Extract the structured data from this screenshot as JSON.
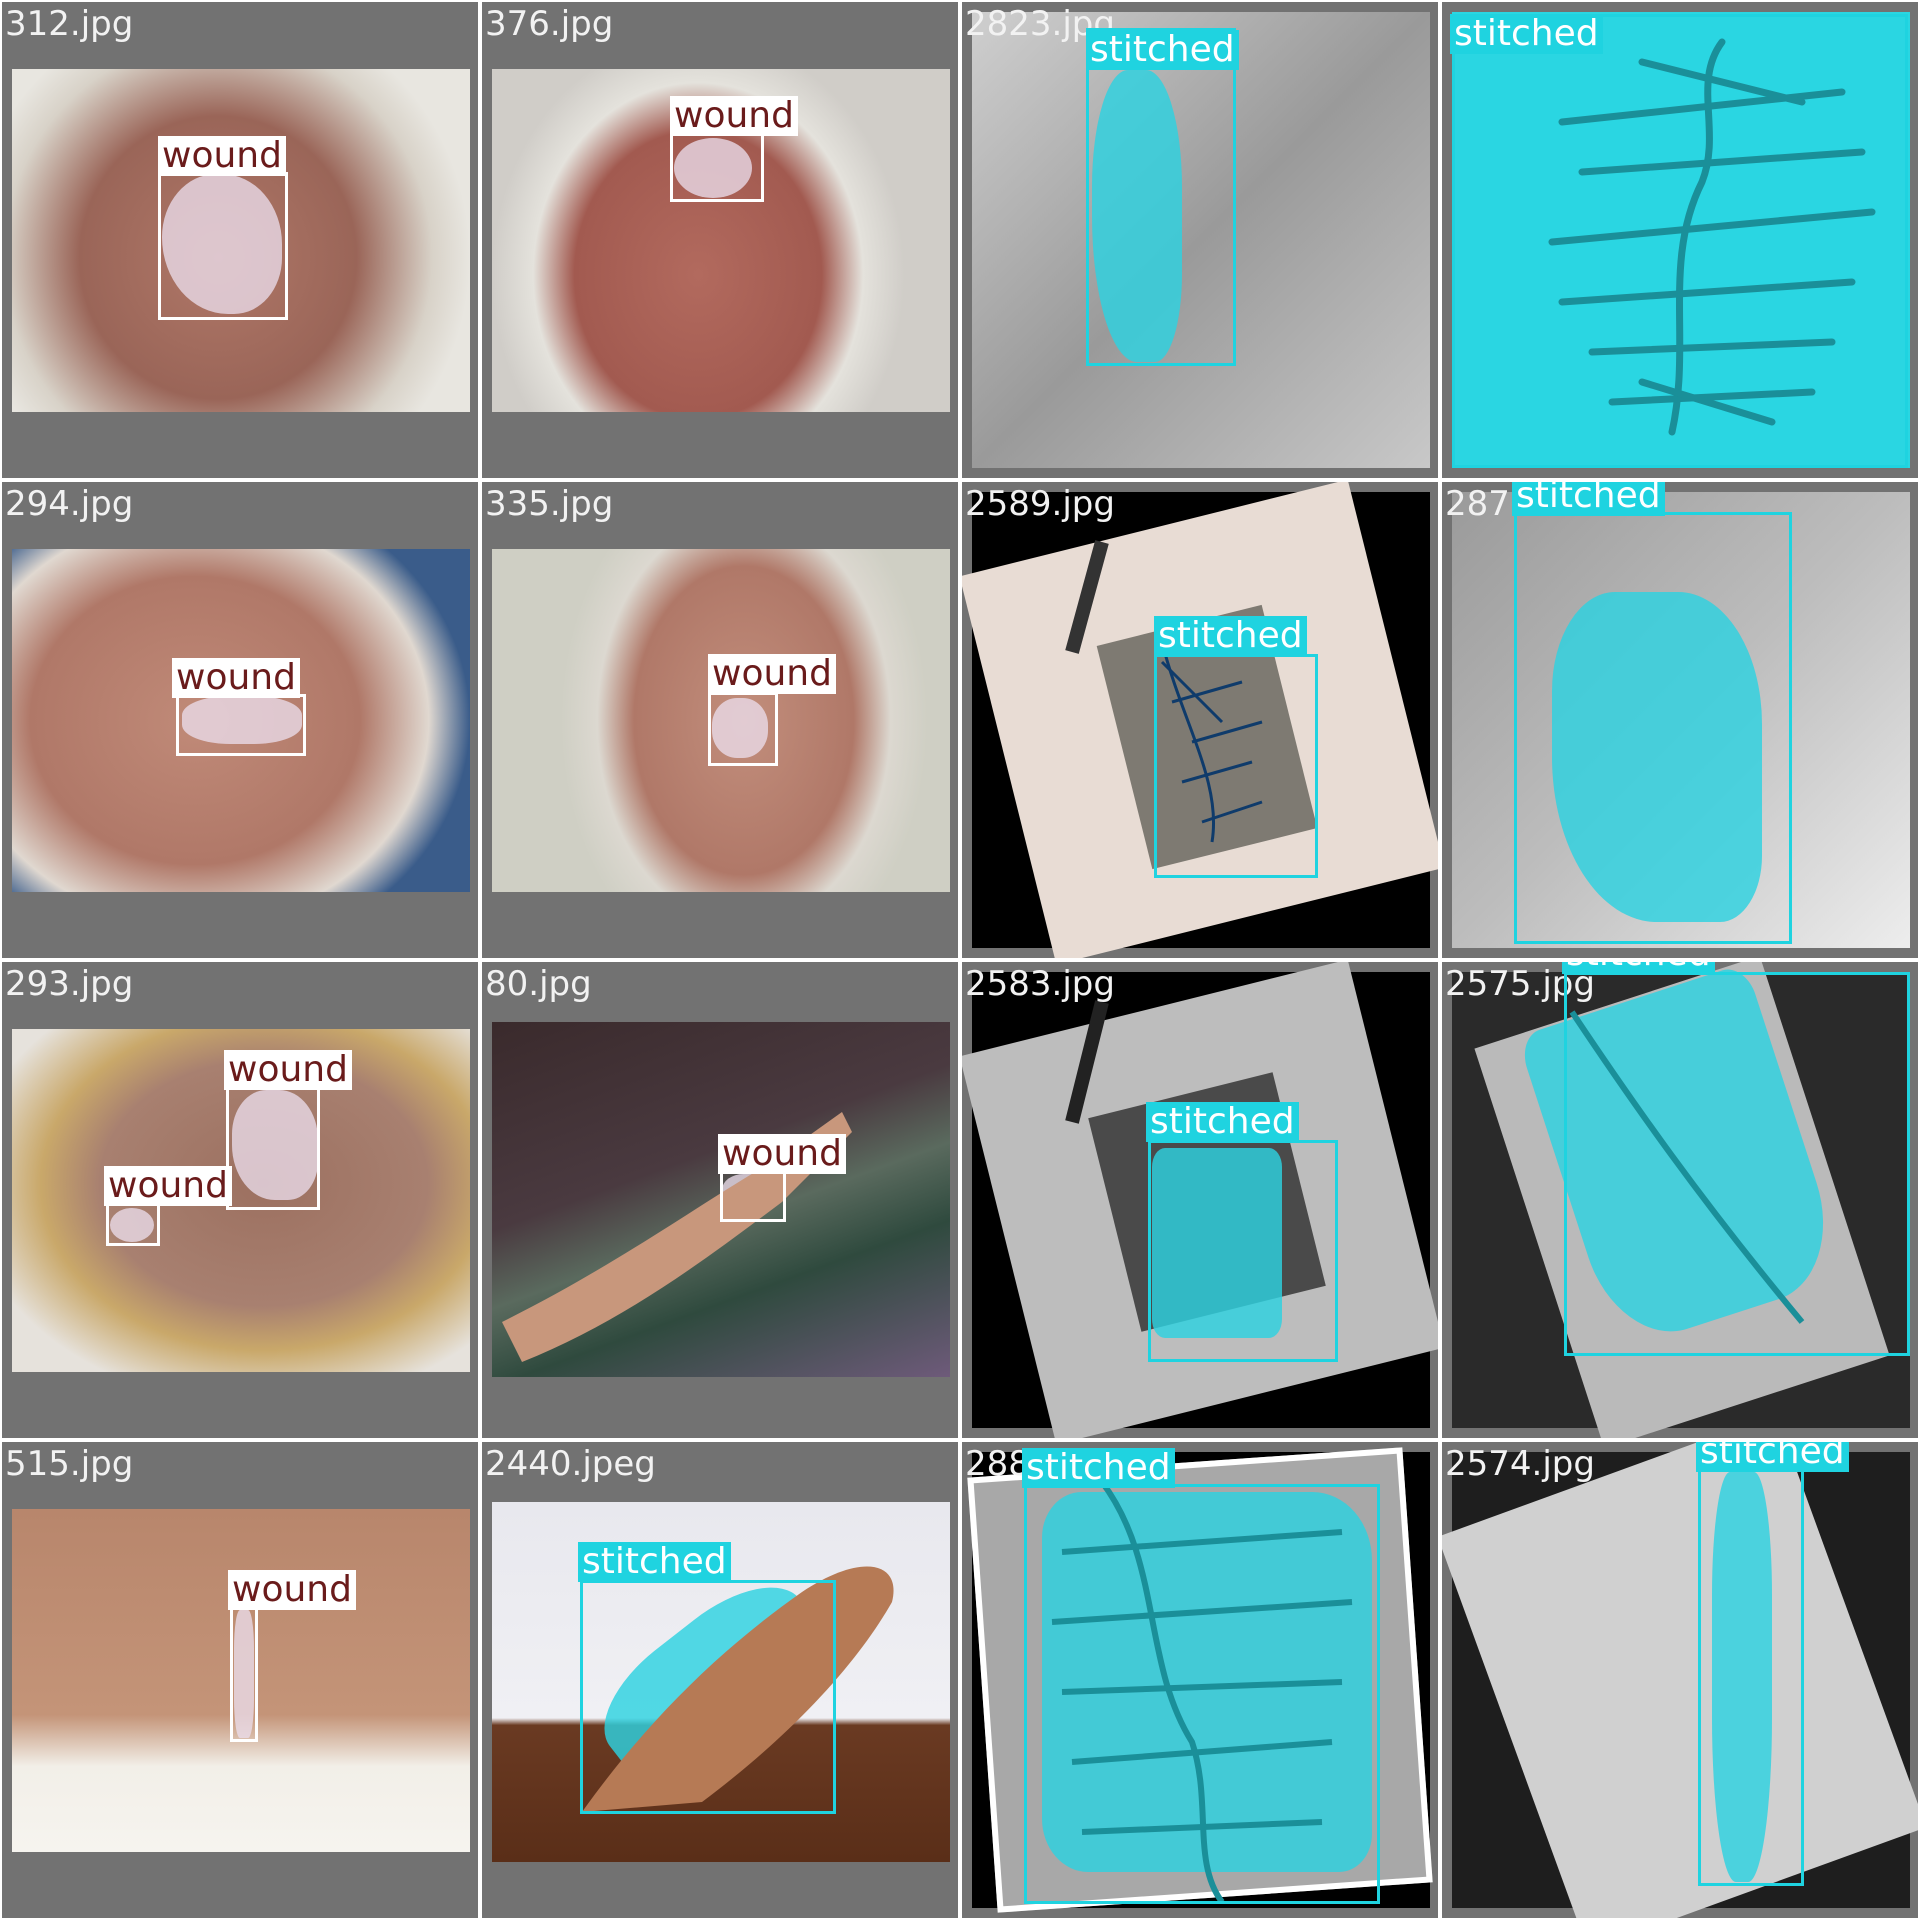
{
  "grid": {
    "columns": 4,
    "rows": 4,
    "colors": {
      "wound_box": "#ffffff",
      "wound_label_text": "#6a1b1b",
      "stitched_box": "#1fd3e0",
      "stitched_label_bg": "#1fd3e0",
      "cell_background": "#727272"
    },
    "tiles": [
      {
        "filename": "312.jpg",
        "detections": [
          {
            "label": "wound"
          }
        ]
      },
      {
        "filename": "376.jpg",
        "detections": [
          {
            "label": "wound"
          }
        ]
      },
      {
        "filename": "2823.jpg",
        "detections": [
          {
            "label": "stitched"
          }
        ]
      },
      {
        "filename": "",
        "detections": [
          {
            "label": "stitched"
          }
        ]
      },
      {
        "filename": "294.jpg",
        "detections": [
          {
            "label": "wound"
          }
        ]
      },
      {
        "filename": "335.jpg",
        "detections": [
          {
            "label": "wound"
          }
        ]
      },
      {
        "filename": "2589.jpg",
        "detections": [
          {
            "label": "stitched"
          }
        ]
      },
      {
        "filename": "287",
        "detections": [
          {
            "label": "stitched"
          }
        ]
      },
      {
        "filename": "293.jpg",
        "detections": [
          {
            "label": "wound"
          },
          {
            "label": "wound"
          }
        ]
      },
      {
        "filename": "80.jpg",
        "detections": [
          {
            "label": "wound"
          }
        ]
      },
      {
        "filename": "2583.jpg",
        "detections": [
          {
            "label": "stitched"
          }
        ]
      },
      {
        "filename": "2575.jpg",
        "detections": [
          {
            "label": "stitched"
          }
        ]
      },
      {
        "filename": "515.jpg",
        "detections": [
          {
            "label": "wound"
          }
        ]
      },
      {
        "filename": "2440.jpeg",
        "detections": [
          {
            "label": "stitched"
          }
        ]
      },
      {
        "filename": "288",
        "detections": [
          {
            "label": "stitched"
          }
        ]
      },
      {
        "filename": "2574.jpg",
        "detections": [
          {
            "label": "stitched"
          }
        ]
      }
    ]
  }
}
